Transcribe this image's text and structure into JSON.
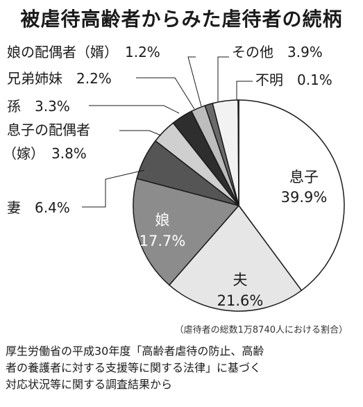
{
  "chart_data": {
    "type": "pie",
    "title": "被虐待高齢者からみた虐待者の続柄",
    "slices": [
      {
        "name": "息子",
        "value": 39.9,
        "label": "39.9%",
        "color": "#ffffff"
      },
      {
        "name": "夫",
        "value": 21.6,
        "label": "21.6%",
        "color": "#e6e6e6"
      },
      {
        "name": "娘",
        "value": 17.7,
        "label": "17.7%",
        "color": "#8c8c8c"
      },
      {
        "name": "妻",
        "value": 6.4,
        "label": "6.4%",
        "color": "#555555"
      },
      {
        "name": "息子の配偶者（嫁）",
        "value": 3.8,
        "label": "3.8%",
        "color": "#cfcfcf"
      },
      {
        "name": "孫",
        "value": 3.3,
        "label": "3.3%",
        "color": "#2e2e2e"
      },
      {
        "name": "兄弟姉妹",
        "value": 2.2,
        "label": "2.2%",
        "color": "#bdbdbd"
      },
      {
        "name": "娘の配偶者（婿）",
        "value": 1.2,
        "label": "1.2%",
        "color": "#6a6a6a"
      },
      {
        "name": "その他",
        "value": 3.9,
        "label": "3.9%",
        "color": "#f2f2f2"
      },
      {
        "name": "不明",
        "value": 0.1,
        "label": "0.1%",
        "color": "#111111"
      }
    ]
  },
  "outer_labels": {
    "muko": "娘の配偶者（婿）　1.2%",
    "kyoudai": "兄弟姉妹　2.2%",
    "mago": "孫　3.3%",
    "yome_1": "息子の配偶者",
    "yome_2": "（嫁）　3.8%",
    "tsuma": "妻　6.4%",
    "sonota": "その他　3.9%",
    "fumei": "不明　0.1%"
  },
  "inner_labels": {
    "musuko_name": "息子",
    "musuko_pct": "39.9%",
    "otto_name": "夫",
    "otto_pct": "21.6%",
    "musume_name": "娘",
    "musume_pct": "17.7%"
  },
  "note": "（虐待者の総数1万8740人における割合）",
  "source_lines": [
    "厚生労働省の平成30年度「高齢者虐待の防止、高齢",
    "者の養護者に対する支援等に関する法律」に基づく",
    "対応状況等に関する調査結果から"
  ]
}
